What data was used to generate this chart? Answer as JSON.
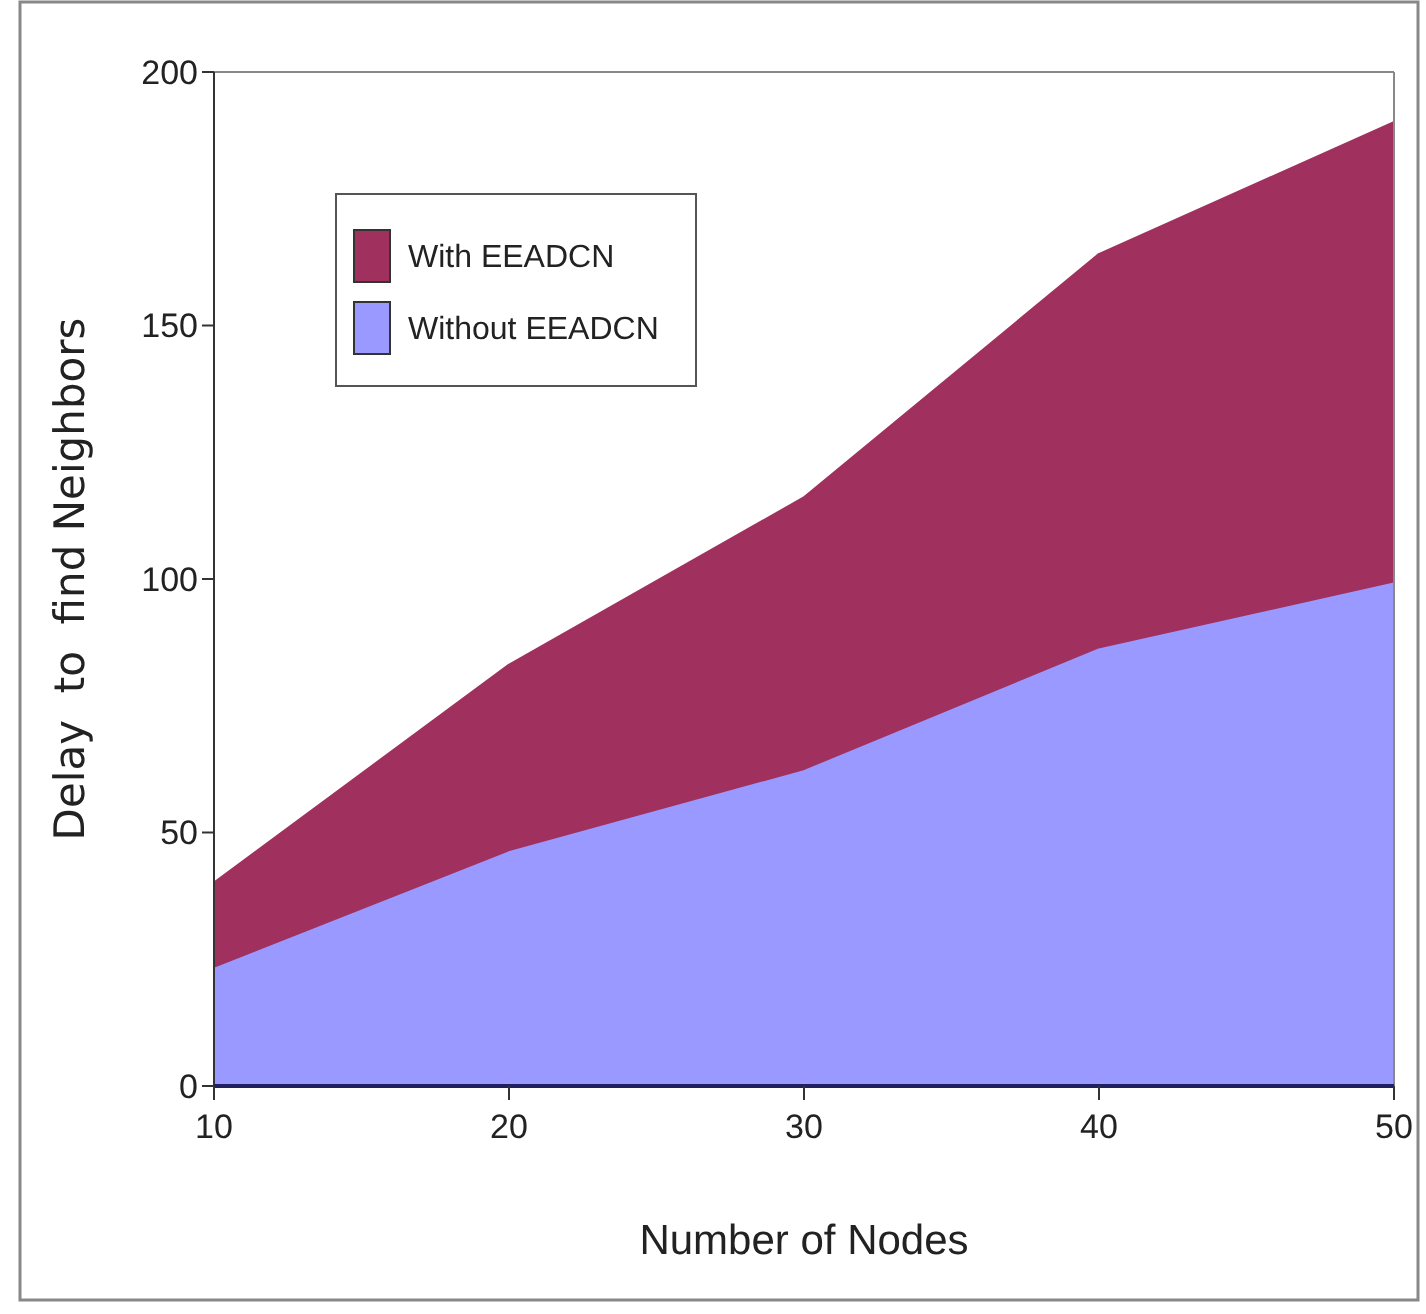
{
  "chart_data": {
    "type": "area",
    "xlabel": "Number of Nodes",
    "ylabel": "Delay  to  find Neighbors",
    "x": [
      10,
      20,
      30,
      40,
      50
    ],
    "xlim": [
      10,
      50
    ],
    "xticks": [
      10,
      20,
      30,
      40,
      50
    ],
    "ylim": [
      0,
      200
    ],
    "yticks": [
      0,
      50,
      100,
      150,
      200
    ],
    "legend": "top left",
    "grid": false,
    "series": [
      {
        "name": "With EEADCN",
        "color": "#a0305e",
        "values": [
          40,
          83,
          116,
          164,
          190
        ]
      },
      {
        "name": "Without EEADCN",
        "color": "#9999ff",
        "values": [
          23,
          46,
          62,
          86,
          99
        ]
      }
    ]
  }
}
